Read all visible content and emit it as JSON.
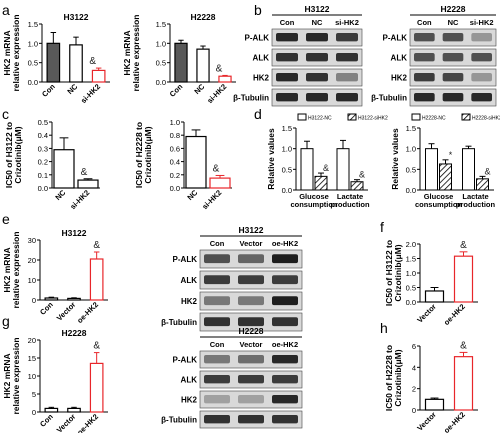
{
  "figure": {
    "panel_letters": [
      "a",
      "b",
      "c",
      "d",
      "e",
      "f",
      "g",
      "h"
    ],
    "panels": {
      "a": {
        "ylabel": [
          "HK2 mRNA",
          "relative expression"
        ],
        "cells": [
          "H3122",
          "H2228"
        ],
        "categories": [
          "Con",
          "NC",
          "si-HK2"
        ],
        "ticks": [
          "0.0",
          "0.5",
          "1.0",
          "1.5"
        ],
        "ampersand": "&"
      },
      "b": {
        "cells": [
          "H3122",
          "H2228"
        ],
        "columns": [
          "Con",
          "NC",
          "si-HK2"
        ],
        "rows": [
          "P-ALK",
          "ALK",
          "HK2",
          "β-Tubulin"
        ]
      },
      "c": {
        "ylabels": [
          "IC50 of H3122 to",
          "Crizotinib(μM)",
          "IC50 of H2228 to",
          "Crizotinib(μM)"
        ],
        "categories": [
          "NC",
          "si-HK2"
        ],
        "ticks_left": [
          "0.0",
          "0.1",
          "0.2",
          "0.3",
          "0.4",
          "0.5"
        ],
        "ticks_right": [
          "0.0",
          "0.2",
          "0.4",
          "0.6",
          "0.8",
          "1.0"
        ],
        "ampersand": "&"
      },
      "d": {
        "ylabel": "Relative values",
        "legend_left": [
          "H3122-NC",
          "H3122-siHK2"
        ],
        "legend_right": [
          "H2228-NC",
          "H2228-siHK2"
        ],
        "groups": [
          "Glucose",
          "consumption",
          "Lactate",
          "production"
        ],
        "ticks": [
          "0.0",
          "0.5",
          "1.0",
          "1.5"
        ],
        "marks": [
          "&",
          "*"
        ]
      },
      "e": {
        "cell": "H3122",
        "ylabel": [
          "HK2 mRNA",
          "relative expression"
        ],
        "categories": [
          "Con",
          "Vector",
          "oe-HK2"
        ],
        "ticks": [
          "0",
          "10",
          "20",
          "30"
        ],
        "blot_title": "H3122",
        "blot_columns": [
          "Con",
          "Vector",
          "oe-HK2"
        ],
        "blot_rows": [
          "P-ALK",
          "ALK",
          "HK2",
          "β-Tubulin"
        ],
        "ampersand": "&"
      },
      "f": {
        "ylabel": [
          "IC50 of H3122 to",
          "Crizotinib(μM)"
        ],
        "categories": [
          "Vector",
          "oe-HK2"
        ],
        "ticks": [
          "0.0",
          "0.5",
          "1.0",
          "1.5",
          "2.0"
        ],
        "ampersand": "&"
      },
      "g": {
        "cell": "H2228",
        "ylabel": [
          "HK2 mRNA",
          "relative expression"
        ],
        "categories": [
          "Con",
          "Vector",
          "oe-HK2"
        ],
        "ticks": [
          "0",
          "5",
          "10",
          "15",
          "20"
        ],
        "blot_title": "H2228",
        "blot_columns": [
          "Con",
          "Vector",
          "oe-HK2"
        ],
        "blot_rows": [
          "P-ALK",
          "ALK",
          "HK2",
          "β-Tubulin"
        ],
        "ampersand": "&"
      },
      "h": {
        "ylabel": [
          "IC50 of H2228 to",
          "Crizotinib(μM)"
        ],
        "categories": [
          "Vector",
          "oe-HK2"
        ],
        "ticks": [
          "0",
          "2",
          "4",
          "6"
        ],
        "ampersand": "&"
      }
    }
  },
  "chart_data": [
    {
      "panel": "a",
      "type": "bar",
      "title": "H3122",
      "categories": [
        "Con",
        "NC",
        "si-HK2"
      ],
      "values": [
        1.0,
        0.96,
        0.3
      ],
      "errors": [
        0.28,
        0.2,
        0.06
      ],
      "ylabel": "HK2 mRNA relative expression",
      "ylim": [
        0,
        1.5
      ],
      "colors": [
        "#595959",
        "#ffffff",
        "#ffffff"
      ],
      "edge_colors": [
        "#000000",
        "#000000",
        "#e8262a"
      ]
    },
    {
      "panel": "a",
      "type": "bar",
      "title": "H2228",
      "categories": [
        "Con",
        "NC",
        "si-HK2"
      ],
      "values": [
        1.0,
        0.85,
        0.15
      ],
      "errors": [
        0.08,
        0.08,
        0.02
      ],
      "ylabel": "HK2 mRNA relative expression",
      "ylim": [
        0,
        1.5
      ],
      "colors": [
        "#595959",
        "#ffffff",
        "#ffffff"
      ],
      "edge_colors": [
        "#000000",
        "#000000",
        "#e8262a"
      ]
    },
    {
      "panel": "c",
      "type": "bar",
      "categories": [
        "NC",
        "si-HK2"
      ],
      "values": [
        0.29,
        0.06
      ],
      "errors": [
        0.09,
        0.01
      ],
      "ylabel": "IC50 of H3122 to Crizotinib(μM)",
      "ylim": [
        0,
        0.5
      ]
    },
    {
      "panel": "c",
      "type": "bar",
      "categories": [
        "NC",
        "si-HK2"
      ],
      "values": [
        0.78,
        0.15
      ],
      "errors": [
        0.1,
        0.04
      ],
      "ylabel": "IC50 of H2228 to Crizotinib(μM)",
      "ylim": [
        0,
        1.0
      ]
    },
    {
      "panel": "d",
      "type": "bar",
      "categories": [
        "Glucose consumption",
        "Lactate production"
      ],
      "series": [
        {
          "name": "H3122-NC",
          "values": [
            1.0,
            1.0
          ],
          "errors": [
            0.18,
            0.2
          ]
        },
        {
          "name": "H3122-siHK2",
          "values": [
            0.33,
            0.2
          ],
          "errors": [
            0.08,
            0.05
          ]
        }
      ],
      "ylabel": "Relative values",
      "ylim": [
        0,
        1.5
      ]
    },
    {
      "panel": "d",
      "type": "bar",
      "categories": [
        "Glucose consumption",
        "Lactate production"
      ],
      "series": [
        {
          "name": "H2228-NC",
          "values": [
            1.0,
            1.0
          ],
          "errors": [
            0.12,
            0.06
          ]
        },
        {
          "name": "H2228-siHK2",
          "values": [
            0.63,
            0.27
          ],
          "errors": [
            0.1,
            0.06
          ]
        }
      ],
      "ylabel": "Relative values",
      "ylim": [
        0,
        1.5
      ]
    },
    {
      "panel": "e",
      "type": "bar",
      "title": "H3122",
      "categories": [
        "Con",
        "Vector",
        "oe-HK2"
      ],
      "values": [
        1.0,
        0.8,
        20.5
      ],
      "errors": [
        0.4,
        0.3,
        3.5
      ],
      "ylabel": "HK2 mRNA relative expression",
      "ylim": [
        0,
        30
      ]
    },
    {
      "panel": "f",
      "type": "bar",
      "categories": [
        "Vector",
        "oe-HK2"
      ],
      "values": [
        0.38,
        1.58
      ],
      "errors": [
        0.12,
        0.15
      ],
      "ylabel": "IC50 of H3122 to Crizotinib(μM)",
      "ylim": [
        0,
        2.0
      ]
    },
    {
      "panel": "g",
      "type": "bar",
      "title": "H2228",
      "categories": [
        "Con",
        "Vector",
        "oe-HK2"
      ],
      "values": [
        1.0,
        1.0,
        13.5
      ],
      "errors": [
        0.3,
        0.3,
        3.0
      ],
      "ylabel": "HK2 mRNA relative expression",
      "ylim": [
        0,
        20
      ]
    },
    {
      "panel": "h",
      "type": "bar",
      "categories": [
        "Vector",
        "oe-HK2"
      ],
      "values": [
        1.0,
        5.0
      ],
      "errors": [
        0.12,
        0.4
      ],
      "ylabel": "IC50 of H2228 to Crizotinib(μM)",
      "ylim": [
        0,
        6
      ]
    }
  ]
}
